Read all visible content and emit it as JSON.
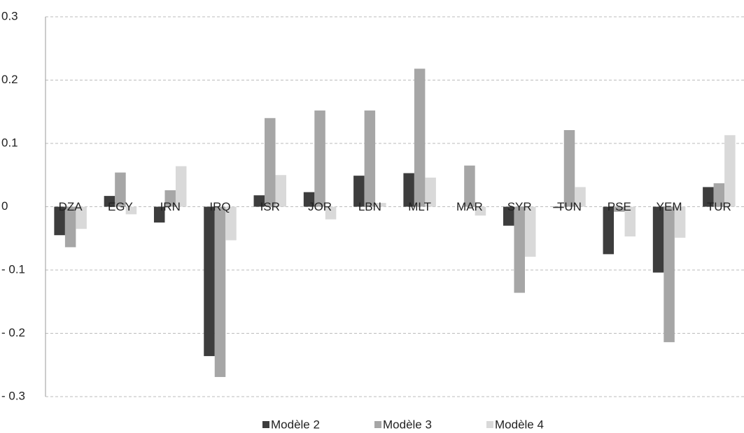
{
  "chart_data": {
    "type": "bar",
    "categories": [
      "DZA",
      "EGY",
      "IRN",
      "IRQ",
      "ISR",
      "JOR",
      "LBN",
      "MLT",
      "MAR",
      "SYR",
      "TUN",
      "PSE",
      "YEM",
      "TUR"
    ],
    "series": [
      {
        "name": "Modèle 2",
        "color": "#3d3d3d",
        "values": [
          -0.045,
          0.017,
          -0.025,
          -0.236,
          0.018,
          0.023,
          0.049,
          0.053,
          0,
          -0.03,
          -0.002,
          -0.075,
          -0.104,
          0.031
        ]
      },
      {
        "name": "Modèle 3",
        "color": "#a6a6a6",
        "values": [
          -0.064,
          0.054,
          0.026,
          -0.269,
          0.14,
          0.152,
          0.152,
          0.218,
          0.065,
          -0.136,
          0.121,
          -0.008,
          -0.214,
          0.037
        ]
      },
      {
        "name": "Modèle 4",
        "color": "#d9d9d9",
        "values": [
          -0.035,
          -0.012,
          0.064,
          -0.053,
          0.05,
          -0.02,
          0.006,
          0.046,
          -0.014,
          -0.079,
          0.031,
          -0.047,
          -0.049,
          0.113
        ]
      }
    ],
    "ylim": [
      -0.3,
      0.3
    ],
    "yticks": [
      0.3,
      0.2,
      0.1,
      0,
      {
        "value": -0.1,
        "label": "- 0.1"
      },
      {
        "value": -0.2,
        "label": "- 0.2"
      },
      {
        "value": -0.3,
        "label": "- 0.3"
      }
    ],
    "grid": true
  }
}
